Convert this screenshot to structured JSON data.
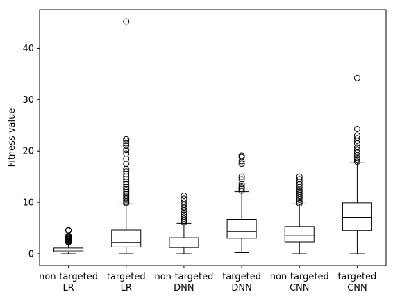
{
  "chart_data": {
    "type": "box",
    "title": "",
    "xlabel": "",
    "ylabel": "Fitness value",
    "ylim": [
      -2.3,
      47.5
    ],
    "yticks": [
      "0",
      "10",
      "20",
      "30",
      "40"
    ],
    "grid": false,
    "categories": [
      {
        "line1": "non-targeted",
        "line2": "LR"
      },
      {
        "line1": "targeted",
        "line2": "LR"
      },
      {
        "line1": "non-targeted",
        "line2": "DNN"
      },
      {
        "line1": "targeted",
        "line2": "DNN"
      },
      {
        "line1": "non-targeted",
        "line2": "CNN"
      },
      {
        "line1": "targeted",
        "line2": "CNN"
      }
    ],
    "boxes": [
      {
        "whisker_low": 0.0,
        "q1": 0.4,
        "median": 0.7,
        "q3": 1.1,
        "whisker_high": 2.1,
        "outliers": [
          2.2,
          2.35,
          2.5,
          2.6,
          2.75,
          2.9,
          3.0,
          3.15,
          3.3,
          3.5,
          4.5,
          4.6
        ]
      },
      {
        "whisker_low": 0.0,
        "q1": 1.3,
        "median": 2.2,
        "q3": 4.6,
        "whisker_high": 9.7,
        "outliers": [
          9.8,
          10.0,
          10.2,
          10.5,
          10.8,
          11.0,
          11.3,
          11.6,
          12.0,
          12.3,
          12.6,
          13.0,
          13.5,
          14.0,
          14.5,
          15.0,
          15.5,
          16.0,
          16.5,
          17.5,
          18.5,
          19.5,
          20.2,
          21.0,
          21.5,
          22.0,
          22.3,
          45.2
        ]
      },
      {
        "whisker_low": 0.0,
        "q1": 1.2,
        "median": 2.1,
        "q3": 3.1,
        "whisker_high": 5.9,
        "outliers": [
          6.1,
          6.4,
          6.8,
          7.2,
          7.6,
          8.0,
          8.5,
          9.0,
          9.5,
          10.0,
          10.7,
          11.3
        ]
      },
      {
        "whisker_low": 0.2,
        "q1": 3.0,
        "median": 4.3,
        "q3": 6.7,
        "whisker_high": 12.1,
        "outliers": [
          12.3,
          12.6,
          12.9,
          13.2,
          13.6,
          14.5,
          15.0,
          17.5,
          18.0,
          18.8,
          19.1
        ]
      },
      {
        "whisker_low": 0.0,
        "q1": 2.3,
        "median": 3.5,
        "q3": 5.3,
        "whisker_high": 9.7,
        "outliers": [
          9.8,
          10.1,
          10.5,
          10.9,
          11.3,
          11.7,
          12.1,
          12.5,
          13.0,
          13.5,
          14.0,
          14.5,
          15.0
        ]
      },
      {
        "whisker_low": 0.0,
        "q1": 4.5,
        "median": 7.1,
        "q3": 9.9,
        "whisker_high": 17.7,
        "outliers": [
          17.9,
          18.3,
          18.7,
          19.2,
          19.7,
          20.2,
          20.7,
          21.5,
          22.0,
          22.5,
          23.0,
          24.3,
          34.2
        ]
      }
    ]
  }
}
